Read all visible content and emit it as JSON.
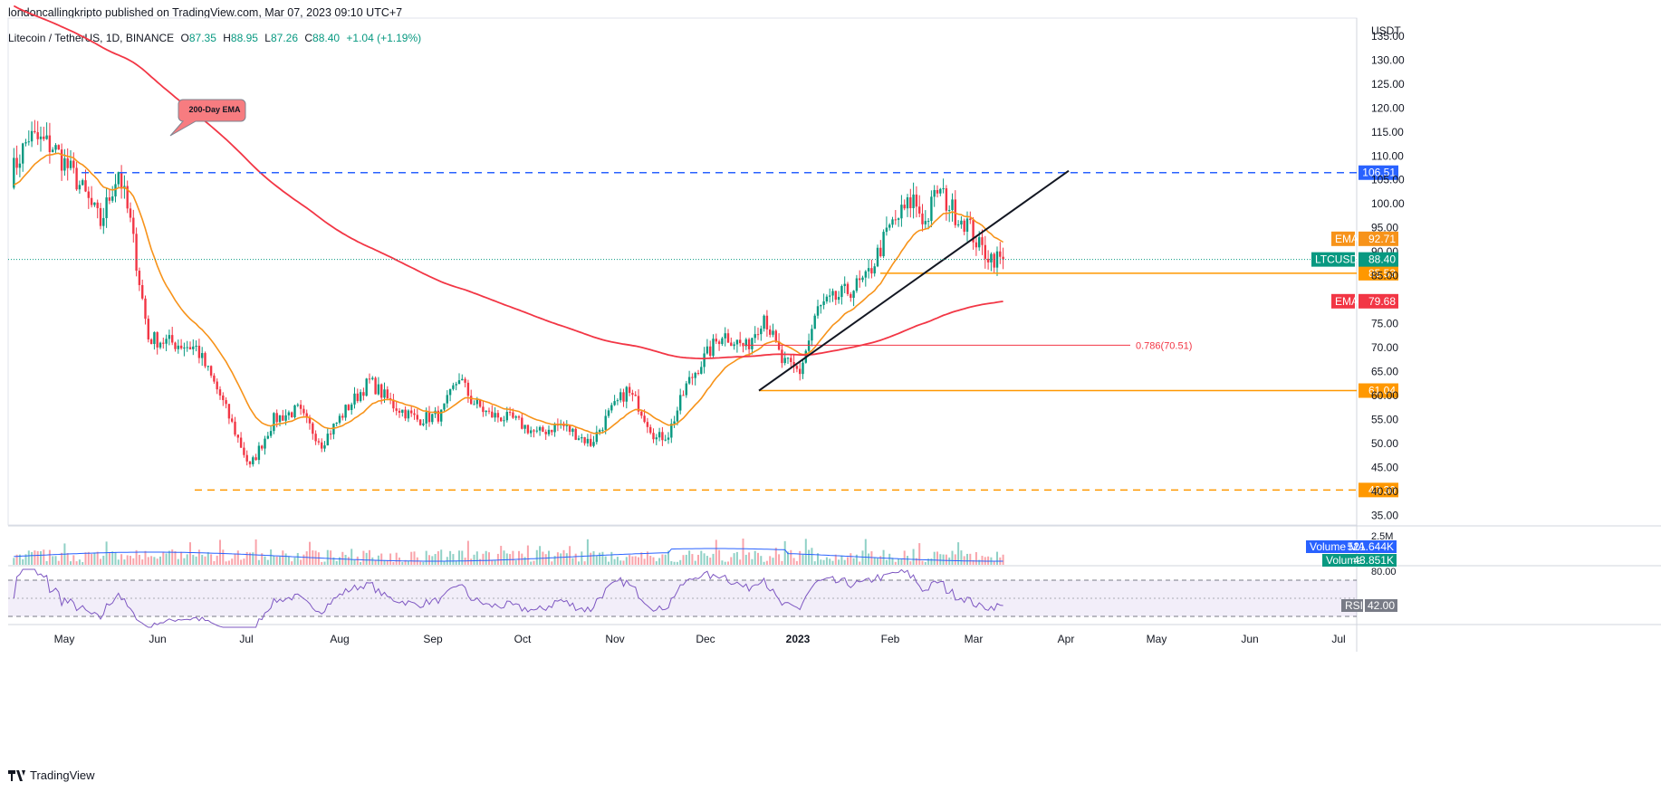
{
  "header": {
    "publisher_note": "londoncallingkripto published on TradingView.com, Mar 07, 2023 09:10 UTC+7"
  },
  "legend": {
    "symbol": "Litecoin / TetherUS, 1D, BINANCE",
    "open_label": "O",
    "open": "87.35",
    "high_label": "H",
    "high": "88.95",
    "low_label": "L",
    "low": "87.26",
    "close_label": "C",
    "close": "88.40",
    "change": "+1.04 (+1.19%)"
  },
  "colors": {
    "up": "#089981",
    "down": "#f23645",
    "ema_fast": "#f7931a",
    "ema_slow": "#f23645",
    "resistance": "#2962ff",
    "support": "#ff9800",
    "fib": "#f23645",
    "rsi": "#7e57c2",
    "volume_ma": "#2962ff"
  },
  "chart_data": {
    "type": "candlestick",
    "currency_label": "USDT",
    "y_ticks": [
      "135.00",
      "130.00",
      "125.00",
      "120.00",
      "115.00",
      "110.00",
      "105.00",
      "100.00",
      "95.00",
      "90.00",
      "85.00",
      "80.00",
      "75.00",
      "70.00",
      "65.00",
      "60.00",
      "55.00",
      "50.00",
      "45.00",
      "40.00",
      "35.00"
    ],
    "ylim": [
      33,
      138
    ],
    "x_ticks": [
      "May",
      "Jun",
      "Jul",
      "Aug",
      "Sep",
      "Oct",
      "Nov",
      "Dec",
      "2023",
      "Feb",
      "Mar",
      "Apr",
      "May",
      "Jun",
      "Jul"
    ],
    "price_path": [
      [
        0,
        106
      ],
      [
        6,
        114
      ],
      [
        14,
        112
      ],
      [
        22,
        105
      ],
      [
        30,
        96
      ],
      [
        36,
        107
      ],
      [
        40,
        96
      ],
      [
        46,
        72
      ],
      [
        54,
        71
      ],
      [
        62,
        70
      ],
      [
        70,
        60
      ],
      [
        76,
        51
      ],
      [
        80,
        45
      ],
      [
        88,
        55
      ],
      [
        96,
        57
      ],
      [
        104,
        50
      ],
      [
        112,
        57
      ],
      [
        120,
        63
      ],
      [
        128,
        58
      ],
      [
        136,
        55
      ],
      [
        144,
        56
      ],
      [
        150,
        64
      ],
      [
        154,
        59
      ],
      [
        160,
        56
      ],
      [
        168,
        55
      ],
      [
        176,
        52
      ],
      [
        184,
        54
      ],
      [
        194,
        50
      ],
      [
        200,
        56
      ],
      [
        206,
        61
      ],
      [
        210,
        58
      ],
      [
        216,
        51
      ],
      [
        220,
        52
      ],
      [
        226,
        62
      ],
      [
        230,
        66
      ],
      [
        238,
        73
      ],
      [
        246,
        70
      ],
      [
        252,
        77
      ],
      [
        258,
        67
      ],
      [
        264,
        65
      ],
      [
        270,
        78
      ],
      [
        278,
        81
      ],
      [
        286,
        84
      ],
      [
        294,
        95
      ],
      [
        302,
        101
      ],
      [
        306,
        96
      ],
      [
        310,
        103
      ],
      [
        316,
        98
      ],
      [
        320,
        96
      ],
      [
        324,
        91
      ],
      [
        328,
        89
      ],
      [
        332,
        88.4
      ]
    ],
    "ema_fast": {
      "label": "EMA",
      "value": "92.71"
    },
    "ema_slow": {
      "label": "EMA",
      "value": "79.68"
    },
    "ema_200_annotation": "200-Day EMA",
    "last_price_label": "LTCUSDT",
    "last_price": "88.40",
    "levels": [
      {
        "value": "106.51",
        "kind": "resistance"
      },
      {
        "value": "85.53",
        "kind": "support"
      },
      {
        "value": "61.04",
        "kind": "support"
      },
      {
        "value": "40.30",
        "kind": "support"
      }
    ],
    "fib_label": "0.786(70.51)",
    "volume_ma": {
      "label": "Volume MA",
      "value": "521.644K"
    },
    "volume": {
      "label": "Volume",
      "value": "43.851K"
    },
    "volume_axis_tick": "2.5M",
    "rsi": {
      "label": "RSI",
      "value": "42.00",
      "upper_tick": "80.00",
      "upper": 70,
      "lower": 30
    }
  },
  "branding": {
    "logo_text": "TradingView"
  }
}
